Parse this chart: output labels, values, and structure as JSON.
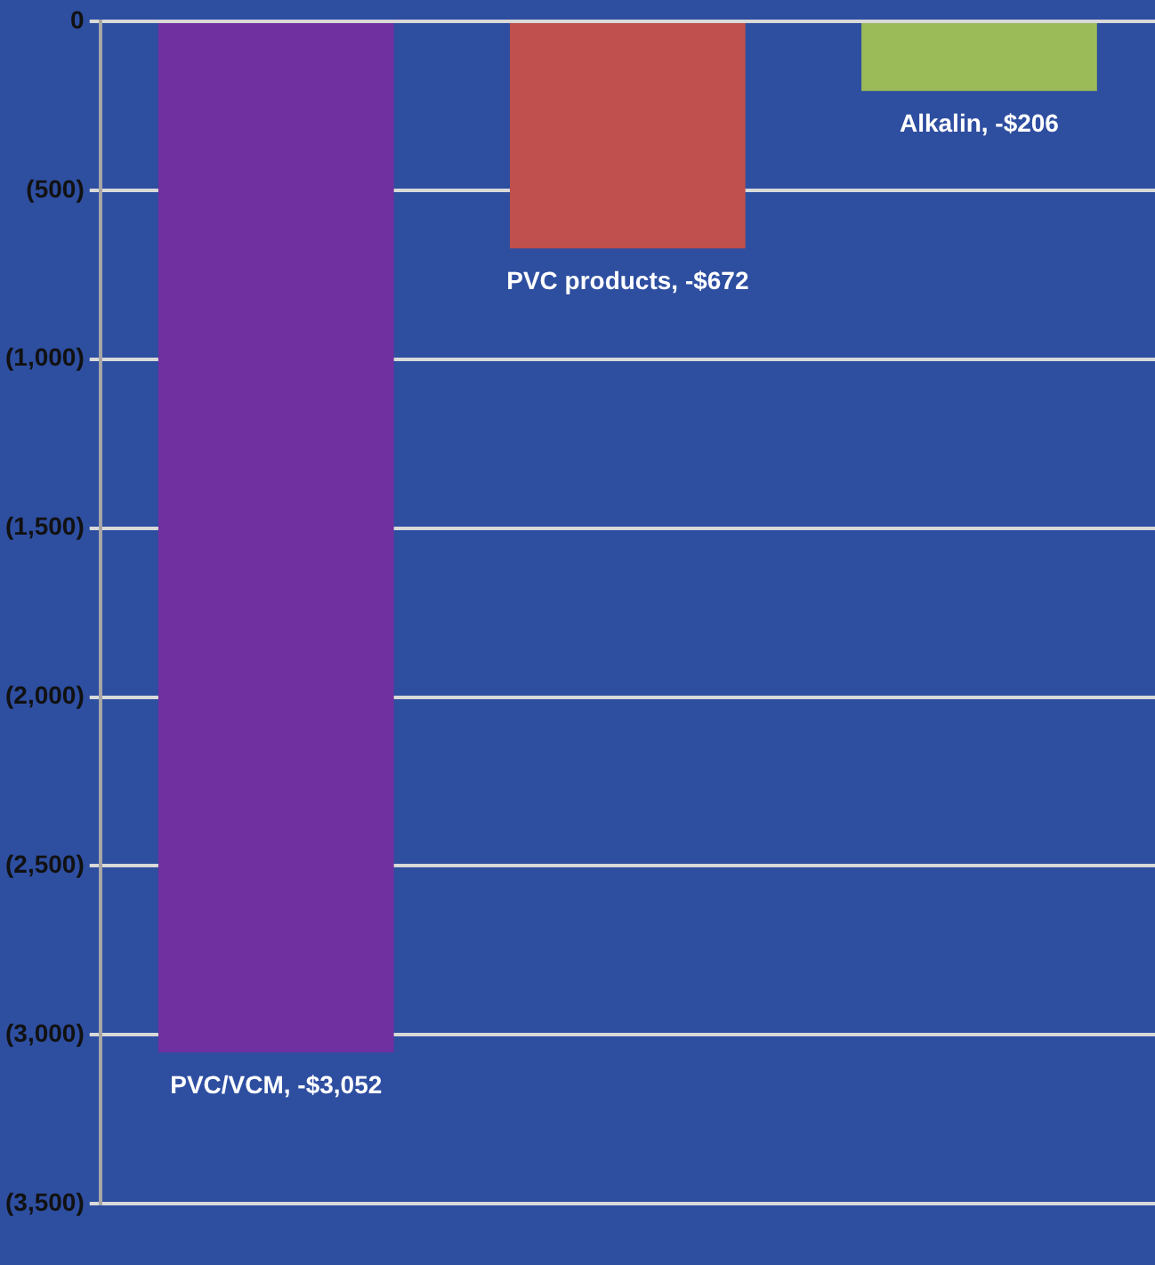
{
  "chart_data": {
    "type": "bar",
    "categories": [
      null,
      null,
      null
    ],
    "values": [
      -3052,
      -672,
      -206
    ],
    "colors": [
      "#7030a0",
      "#c0504d",
      "#9bbb59"
    ],
    "value_labels": [
      "PVC/VCM, -$3,052",
      "PVC products, -$672",
      "Alkalin, -$206"
    ],
    "ylim": [
      -3500,
      0
    ],
    "yticks": [
      {
        "value": -3500,
        "label": "(3,500)"
      },
      {
        "value": -3000,
        "label": "(3,000)"
      },
      {
        "value": -2500,
        "label": "(2,500)"
      },
      {
        "value": -2000,
        "label": "(2,000)"
      },
      {
        "value": -1500,
        "label": "(1,500)"
      },
      {
        "value": -1000,
        "label": "(1,000)"
      },
      {
        "value": -500,
        "label": "(500)"
      },
      0
    ],
    "grid": "y"
  }
}
